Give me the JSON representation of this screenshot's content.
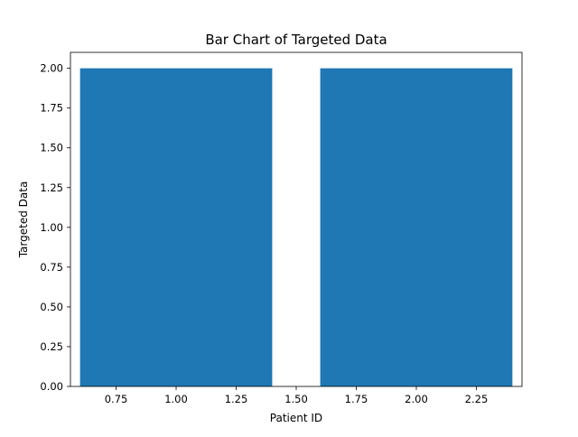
{
  "chart_data": {
    "type": "bar",
    "title": "Bar Chart of Targeted Data",
    "xlabel": "Patient ID",
    "ylabel": "Targeted Data",
    "x": [
      1,
      2
    ],
    "values": [
      2,
      2
    ],
    "bar_width": 0.8,
    "xlim": [
      0.56,
      2.44
    ],
    "ylim": [
      0,
      2.1
    ],
    "xticks": [
      0.75,
      1.0,
      1.25,
      1.5,
      1.75,
      2.0,
      2.25
    ],
    "xtick_labels": [
      "0.75",
      "1.00",
      "1.25",
      "1.50",
      "1.75",
      "2.00",
      "2.25"
    ],
    "yticks": [
      0,
      0.25,
      0.5,
      0.75,
      1.0,
      1.25,
      1.5,
      1.75,
      2.0
    ],
    "ytick_labels": [
      "0.00",
      "0.25",
      "0.50",
      "0.75",
      "1.00",
      "1.25",
      "1.50",
      "1.75",
      "2.00"
    ],
    "grid": false,
    "legend": "none",
    "colors": {
      "bar": "#1f77b4",
      "axis": "#000000",
      "background": "#ffffff"
    }
  }
}
